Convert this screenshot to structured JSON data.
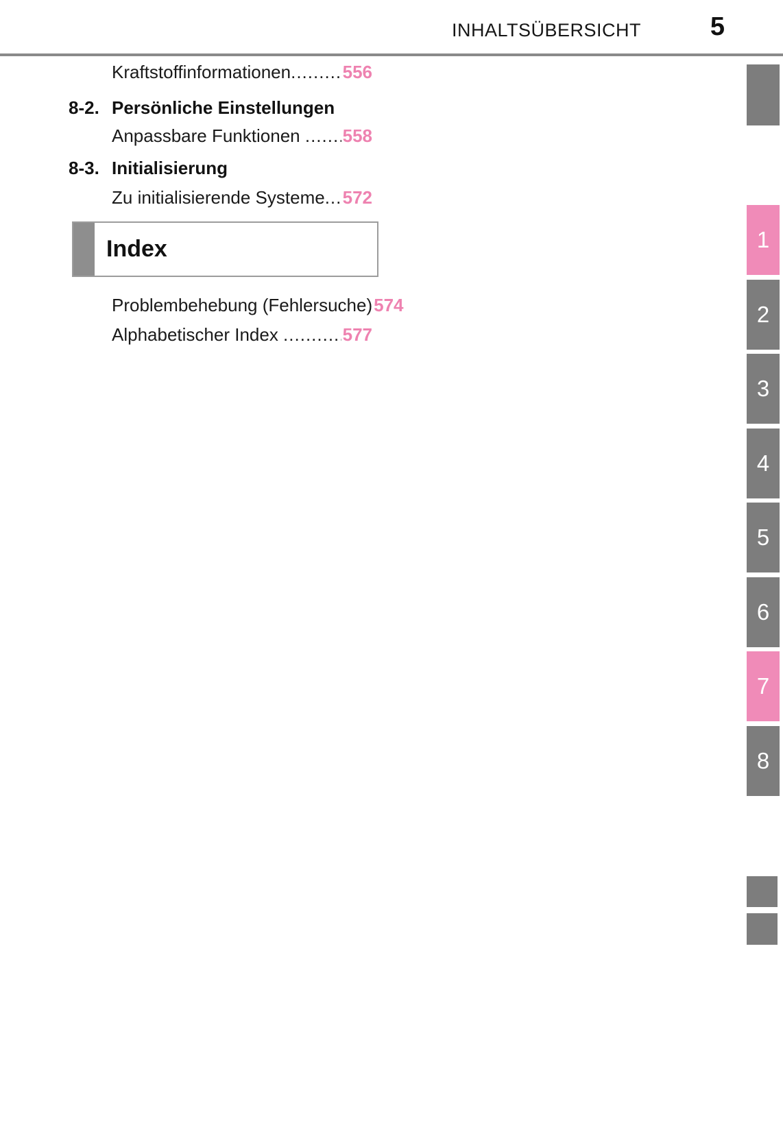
{
  "header": {
    "title": "INHALTSÜBERSICHT",
    "page_number": "5"
  },
  "toc": {
    "rows": [
      {
        "type": "entry",
        "title": "Kraftstoffinformationen",
        "leader": "............................................................",
        "page": "556"
      },
      {
        "type": "section",
        "num": "8-2.",
        "title": "Persönliche Einstellungen"
      },
      {
        "type": "entry",
        "title": "Anpassbare Funktionen ",
        "leader": "............................................................",
        "page": "558"
      },
      {
        "type": "section",
        "num": "8-3.",
        "title": "Initialisierung"
      },
      {
        "type": "entry",
        "title": "Zu initialisierende Systeme",
        "leader": "............................................................",
        "page": "572"
      },
      {
        "type": "entry",
        "title": "Problembehebung (Fehlersuche)",
        "leader": "",
        "page": "574"
      },
      {
        "type": "entry",
        "title": "Alphabetischer Index ",
        "leader": "............................................................",
        "page": "577"
      }
    ]
  },
  "index_box": {
    "label": "Index"
  },
  "sidebar": {
    "tabs": [
      {
        "label": "1",
        "active": true
      },
      {
        "label": "2",
        "active": false
      },
      {
        "label": "3",
        "active": false
      },
      {
        "label": "4",
        "active": false
      },
      {
        "label": "5",
        "active": false
      },
      {
        "label": "6",
        "active": false
      },
      {
        "label": "7",
        "active": true
      },
      {
        "label": "8",
        "active": false
      }
    ]
  },
  "colors": {
    "accent_pink_tab": "#f08bb8",
    "accent_pink_text": "#ee82b0",
    "tab_gray": "#7d7d7d",
    "rule_gray": "#8a8a8a",
    "index_bar_gray": "#8e8e8e"
  }
}
